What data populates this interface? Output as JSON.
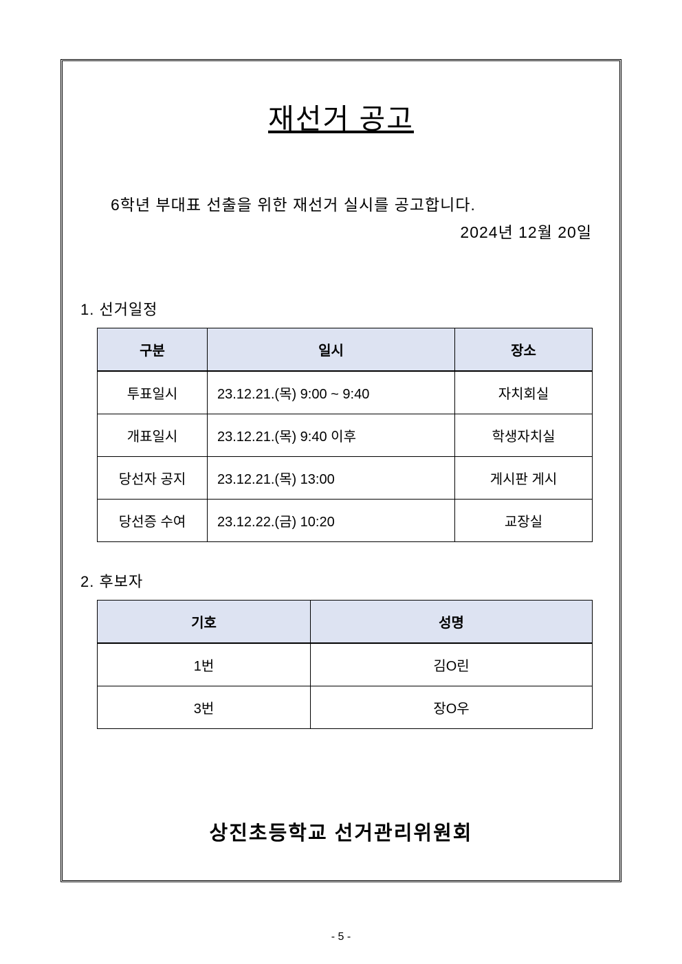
{
  "title": "재선거 공고",
  "intro_text": "6학년 부대표 선출을 위한 재선거 실시를 공고합니다.",
  "announce_date": "2024년 12월 20일",
  "section1": {
    "heading": "1. 선거일정",
    "table": {
      "header_bg": "#dde3f2",
      "columns": [
        "구분",
        "일시",
        "장소"
      ],
      "rows": [
        {
          "a": "투표일시",
          "b": "23.12.21.(목) 9:00 ~ 9:40",
          "c": "자치회실"
        },
        {
          "a": "개표일시",
          "b": "23.12.21.(목) 9:40 이후",
          "c": "학생자치실"
        },
        {
          "a": "당선자 공지",
          "b": "23.12.21.(목) 13:00",
          "c": "게시판 게시"
        },
        {
          "a": "당선증 수여",
          "b": "23.12.22.(금) 10:20",
          "c": "교장실"
        }
      ]
    }
  },
  "section2": {
    "heading": "2. 후보자",
    "table": {
      "header_bg": "#dde3f2",
      "columns": [
        "기호",
        "성명"
      ],
      "rows": [
        {
          "a": "1번",
          "b": "김O린"
        },
        {
          "a": "3번",
          "b": "장O우"
        }
      ]
    }
  },
  "footer_org": "상진초등학교 선거관리위원회",
  "page_number": "- 5 -",
  "colors": {
    "background": "#ffffff",
    "text": "#000000",
    "border": "#000000",
    "table_header_bg": "#dde3f2"
  },
  "fonts": {
    "title_size": 41,
    "body_size": 23,
    "section_size": 22,
    "table_cell_size": 20,
    "footer_size": 29
  }
}
